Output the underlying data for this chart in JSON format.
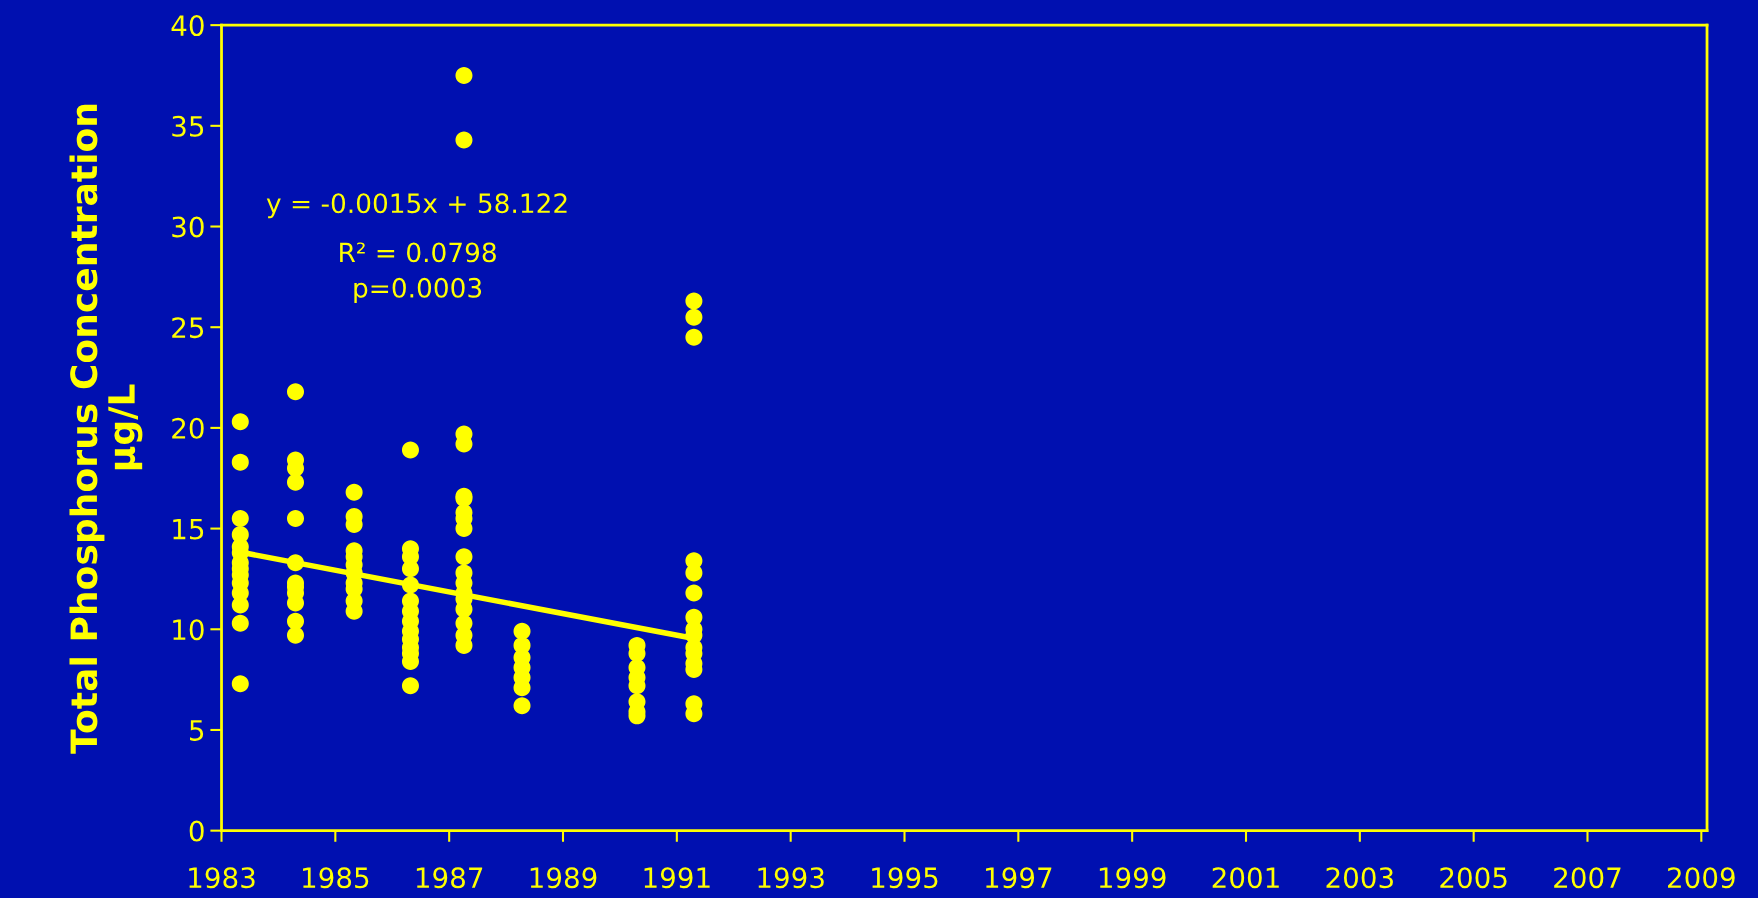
{
  "chart_data": {
    "type": "scatter",
    "ylabel": "Total Phosphorus Concentration\nµg/L",
    "annotations": [
      "y = -0.0015x + 58.122",
      "R² = 0.0798",
      "p=0.0003"
    ],
    "series": [
      {
        "color": "#ffff00",
        "marker": "circle",
        "x": [
          1983.33,
          1983.33,
          1983.33,
          1983.33,
          1983.33,
          1983.33,
          1983.33,
          1983.33,
          1983.33,
          1983.33,
          1983.33,
          1983.33,
          1983.33,
          1983.33,
          1984.3,
          1984.3,
          1984.3,
          1984.3,
          1984.3,
          1984.3,
          1984.3,
          1984.3,
          1984.3,
          1984.3,
          1984.3,
          1984.3,
          1985.33,
          1985.33,
          1985.33,
          1985.33,
          1985.33,
          1985.33,
          1985.33,
          1985.33,
          1985.33,
          1985.33,
          1985.33,
          1986.32,
          1986.32,
          1986.32,
          1986.32,
          1986.32,
          1986.32,
          1986.32,
          1986.32,
          1986.32,
          1986.32,
          1986.32,
          1986.32,
          1986.32,
          1986.32,
          1987.26,
          1987.26,
          1987.26,
          1987.26,
          1987.26,
          1987.26,
          1987.26,
          1987.26,
          1987.26,
          1987.26,
          1987.26,
          1987.26,
          1987.26,
          1987.26,
          1987.26,
          1987.26,
          1987.26,
          1987.26,
          1988.28,
          1988.28,
          1988.28,
          1988.28,
          1988.28,
          1988.28,
          1988.28,
          1990.3,
          1990.3,
          1990.3,
          1990.3,
          1990.3,
          1990.3,
          1990.3,
          1990.3,
          1991.3,
          1991.3,
          1991.3,
          1991.3,
          1991.3,
          1991.3,
          1991.3,
          1991.3,
          1991.3,
          1991.3,
          1991.3,
          1991.3,
          1991.3,
          1991.3,
          1991.3
        ],
        "values": [
          20.3,
          18.3,
          15.5,
          14.7,
          14.1,
          13.8,
          13.3,
          13.0,
          12.7,
          12.3,
          11.8,
          11.2,
          10.3,
          7.3,
          21.8,
          18.4,
          18.0,
          17.3,
          15.5,
          13.3,
          12.3,
          12.1,
          11.8,
          11.3,
          10.4,
          9.7,
          16.8,
          15.6,
          15.2,
          13.9,
          13.6,
          13.2,
          12.8,
          12.3,
          12.0,
          11.4,
          10.9,
          18.9,
          14.0,
          13.6,
          13.0,
          12.2,
          11.4,
          10.9,
          10.4,
          9.9,
          9.5,
          9.1,
          8.8,
          8.4,
          7.2,
          37.5,
          34.3,
          19.7,
          19.2,
          16.6,
          16.5,
          15.8,
          15.5,
          15.0,
          13.6,
          12.8,
          12.3,
          11.8,
          11.5,
          11.0,
          10.3,
          9.7,
          9.2,
          9.9,
          9.2,
          8.6,
          8.1,
          7.6,
          7.1,
          6.2,
          9.2,
          8.8,
          8.1,
          7.6,
          7.2,
          6.4,
          5.9,
          5.7,
          26.3,
          25.5,
          24.5,
          13.4,
          12.8,
          11.8,
          10.6,
          10.0,
          9.7,
          9.1,
          8.8,
          8.3,
          8.0,
          6.3,
          5.8
        ]
      },
      {
        "type": "line",
        "color": "#ffff00",
        "x": [
          1983.39,
          1991.19
        ],
        "values": [
          13.8,
          9.6
        ]
      }
    ],
    "xlim": [
      1983,
      2009.1
    ],
    "xticks": [
      1983,
      1985,
      1987,
      1989,
      1991,
      1993,
      1995,
      1997,
      1999,
      2001,
      2003,
      2005,
      2007,
      2009
    ],
    "ylim": [
      0,
      40
    ],
    "yticks": [
      0,
      5,
      10,
      15,
      20,
      25,
      30,
      35,
      40
    ],
    "grid": false,
    "legend": false
  }
}
